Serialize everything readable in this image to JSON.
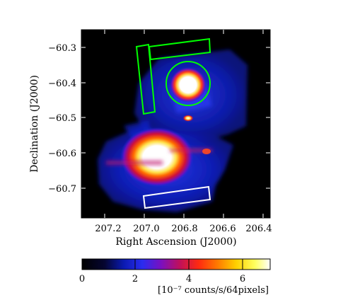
{
  "image": {
    "x_axis": {
      "label": "Right Ascension (J2000)",
      "ticks": [
        "207.2",
        "207.0",
        "206.8",
        "206.6",
        "206.4"
      ]
    },
    "y_axis": {
      "label": "Declination (J2000)",
      "ticks": [
        "−60.3",
        "−60.4",
        "−60.5",
        "−60.6",
        "−60.7"
      ]
    },
    "colorbar": {
      "ticks": [
        "0",
        "2",
        "4",
        "6"
      ],
      "units": "[10⁻⁷ counts/s/64pixels]",
      "colormap": "black-blue-purple-red-yellow-white"
    },
    "regions": [
      {
        "name": "source-circle",
        "shape": "circle",
        "color": "#00ff00"
      },
      {
        "name": "background-box-vertical",
        "shape": "box",
        "color": "#00ff00"
      },
      {
        "name": "background-box-horizontal",
        "shape": "box",
        "color": "#00ff00"
      },
      {
        "name": "background-box-lower",
        "shape": "box",
        "color": "#ffffff"
      }
    ]
  }
}
